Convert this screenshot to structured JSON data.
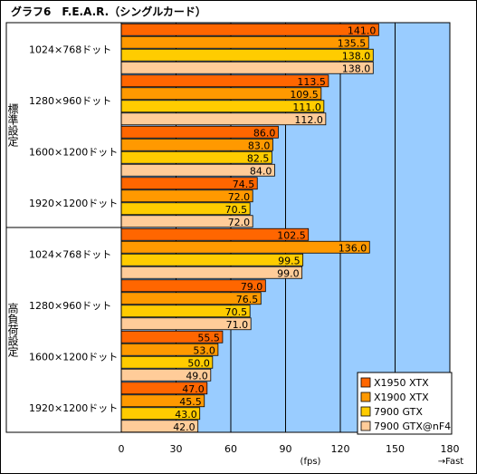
{
  "chart_data": {
    "type": "bar",
    "orientation": "horizontal",
    "title": "グラフ6　F.E.A.R.（シングルカード）",
    "groups": [
      {
        "label": "標準設定",
        "categories": [
          "1024×768ドット",
          "1280×960ドット",
          "1600×1200ドット",
          "1920×1200ドット"
        ]
      },
      {
        "label": "高負荷設定",
        "categories": [
          "1024×768ドット",
          "1280×960ドット",
          "1600×1200ドット",
          "1920×1200ドット"
        ]
      }
    ],
    "series": [
      {
        "name": "X1950 XTX",
        "color": "#FF6600",
        "values": [
          141.0,
          113.5,
          86.0,
          74.5,
          102.5,
          79.0,
          55.5,
          47.0
        ],
        "labels": [
          "141.0",
          "113.5",
          "86.0",
          "74.5",
          "102.5",
          "79.0",
          "55.5",
          "47.0"
        ]
      },
      {
        "name": "X1900 XTX",
        "color": "#FF9900",
        "values": [
          135.5,
          109.5,
          83.0,
          72.0,
          136.0,
          76.5,
          53.0,
          45.5
        ],
        "labels": [
          "135.5",
          "109.5",
          "83.0",
          "72.0",
          "136.0",
          "76.5",
          "53.0",
          "45.5"
        ]
      },
      {
        "name": "7900 GTX",
        "color": "#FFCC00",
        "values": [
          138.0,
          111.0,
          82.5,
          70.5,
          99.5,
          70.5,
          50.0,
          43.0
        ],
        "labels": [
          "138.0",
          "111.0",
          "82.5",
          "70.5",
          "99.5",
          "70.5",
          "50.0",
          "43.0"
        ]
      },
      {
        "name": "7900 GTX@nF4",
        "color": "#FFCC99",
        "values": [
          138.0,
          112.0,
          84.0,
          72.0,
          99.0,
          71.0,
          49.0,
          42.0
        ],
        "labels": [
          "138.0",
          "112.0",
          "84.0",
          "72.0",
          "99.0",
          "71.0",
          "49.0",
          "42.0"
        ]
      }
    ],
    "xlim": [
      0,
      180
    ],
    "xticks": [
      0,
      30,
      60,
      90,
      120,
      150,
      180
    ],
    "xtick_labels": [
      "0",
      "30",
      "60",
      "90",
      "120",
      "150",
      "180"
    ],
    "xlabel": "(fps)",
    "x_direction_note": "→Fast",
    "legend_position": "bottom-right",
    "grid": "vertical",
    "plot_background": "#99CCFF"
  }
}
